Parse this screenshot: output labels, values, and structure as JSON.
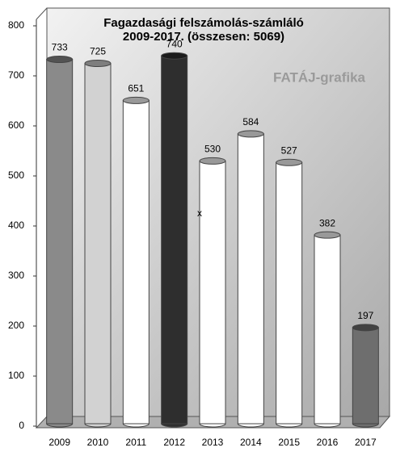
{
  "chart_data": {
    "type": "bar",
    "title": "Fagazdasági felszámolás-számláló",
    "subtitle": "2009-2017. (összesen: 5069)",
    "watermark": "FATÁJ-grafika",
    "annotation": "x",
    "categories": [
      "2009",
      "2010",
      "2011",
      "2012",
      "2013",
      "2014",
      "2015",
      "2016",
      "2017"
    ],
    "values": [
      733,
      725,
      651,
      740,
      530,
      584,
      527,
      382,
      197
    ],
    "colors": [
      "#8a8a8a",
      "#d2d2d2",
      "#ffffff",
      "#2e2e2e",
      "#ffffff",
      "#ffffff",
      "#ffffff",
      "#ffffff",
      "#6e6e6e"
    ],
    "ylim": [
      0,
      800
    ],
    "yticks": [
      0,
      100,
      200,
      300,
      400,
      500,
      600,
      700,
      800
    ],
    "grid": false
  }
}
